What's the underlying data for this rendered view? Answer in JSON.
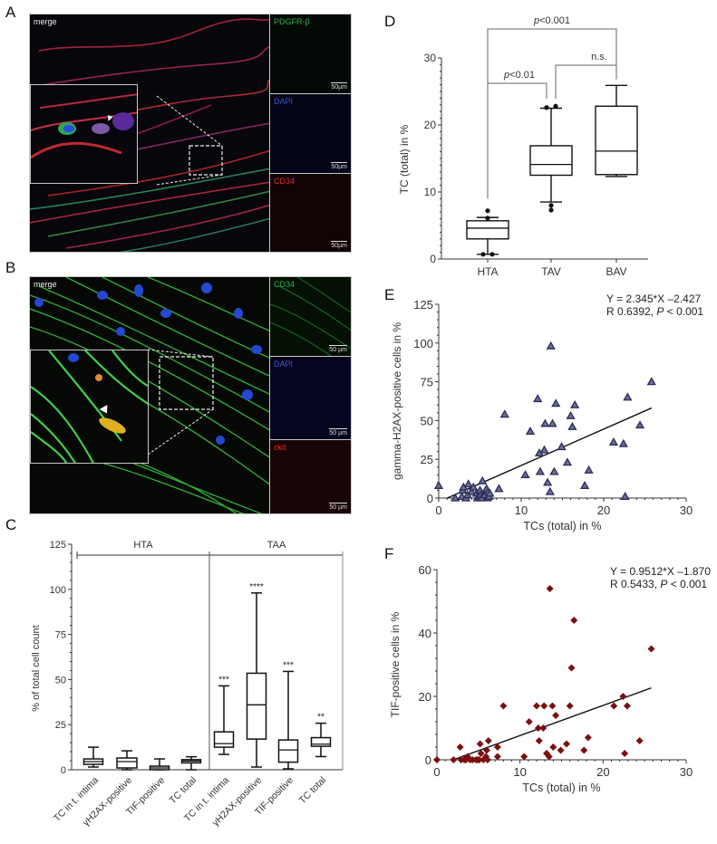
{
  "figure": {
    "panels": {
      "A": {
        "letter": "A",
        "main_label": "merge",
        "channels": [
          {
            "label": "PDGFR-β",
            "color": "#2fae52",
            "scale": "50µm"
          },
          {
            "label": "DAPI",
            "color": "#3a5bd0",
            "scale": "50µm"
          },
          {
            "label": "CD34",
            "color": "#e0302a",
            "scale": "50µm"
          }
        ]
      },
      "B": {
        "letter": "B",
        "main_label": "merge",
        "channels": [
          {
            "label": "CD34",
            "color": "#2fae52",
            "scale": "50 µm"
          },
          {
            "label": "DAPI",
            "color": "#3a5bd0",
            "scale": "50 µm"
          },
          {
            "label": "ckit",
            "color": "#e0302a",
            "scale": "50 µm"
          }
        ]
      },
      "C": {
        "letter": "C"
      },
      "D": {
        "letter": "D"
      },
      "E": {
        "letter": "E"
      },
      "F": {
        "letter": "F"
      }
    }
  },
  "chart_data": [
    {
      "panel": "C",
      "type": "box",
      "title": "",
      "ylabel": "% of total cell count",
      "xlabel": "",
      "ylim": [
        0,
        125
      ],
      "yticks": [
        0,
        25,
        50,
        75,
        100,
        125
      ],
      "groups": [
        {
          "name": "HTA",
          "categories": [
            "TC in t. intima",
            "γH2AX-positive",
            "TIF-positive",
            "TC total"
          ]
        },
        {
          "name": "TAA",
          "categories": [
            "TC in t. intima",
            "γH2AX-positive",
            "TIF-positive",
            "TC total"
          ]
        }
      ],
      "boxes": [
        {
          "group": "HTA",
          "category": "TC in t. intima",
          "min": 1.5,
          "q1": 3,
          "median": 4.5,
          "q3": 6,
          "max": 12.5,
          "annotation": ""
        },
        {
          "group": "HTA",
          "category": "γH2AX-positive",
          "min": 0,
          "q1": 1,
          "median": 4.5,
          "q3": 6.5,
          "max": 10.5,
          "annotation": ""
        },
        {
          "group": "HTA",
          "category": "TIF-positive",
          "min": 0,
          "q1": 0,
          "median": 1,
          "q3": 2,
          "max": 6,
          "annotation": ""
        },
        {
          "group": "HTA",
          "category": "TC total",
          "min": 0,
          "q1": 3.8,
          "median": 4.8,
          "q3": 5.6,
          "max": 7.2,
          "annotation": ""
        },
        {
          "group": "TAA",
          "category": "TC in t. intima",
          "min": 8.5,
          "q1": 12.5,
          "median": 14.5,
          "q3": 21,
          "max": 46.5,
          "annotation": "***"
        },
        {
          "group": "TAA",
          "category": "γH2AX-positive",
          "min": 1.5,
          "q1": 17,
          "median": 36,
          "q3": 53.5,
          "max": 98,
          "annotation": "****"
        },
        {
          "group": "TAA",
          "category": "TIF-positive",
          "min": 0.5,
          "q1": 4.2,
          "median": 11,
          "q3": 16.5,
          "max": 54.5,
          "annotation": "***"
        },
        {
          "group": "TAA",
          "category": "TC total",
          "min": 7.3,
          "q1": 13,
          "median": 14.2,
          "q3": 17.8,
          "max": 25.8,
          "annotation": "**"
        }
      ]
    },
    {
      "panel": "D",
      "type": "box",
      "title": "",
      "ylabel": "TC (total) in %",
      "xlabel": "",
      "ylim": [
        0,
        30
      ],
      "yticks": [
        0,
        10,
        20,
        30
      ],
      "categories": [
        "HTA",
        "TAV",
        "BAV"
      ],
      "boxes": [
        {
          "category": "HTA",
          "min": 0.7,
          "q1": 3,
          "median": 4.6,
          "q3": 5.7,
          "max": 6.2,
          "outliers": [
            7.2,
            6.1,
            0.7,
            0.7
          ]
        },
        {
          "category": "TAV",
          "min": 8.5,
          "q1": 12.5,
          "median": 14.1,
          "q3": 16.9,
          "max": 22.5,
          "outliers": [
            22.6,
            22.8,
            8.0,
            7.3
          ]
        },
        {
          "category": "BAV",
          "min": 12.3,
          "q1": 12.6,
          "median": 16.1,
          "q3": 22.8,
          "max": 25.9,
          "outliers": []
        }
      ],
      "comparisons": [
        {
          "from": "HTA",
          "to": "TAV",
          "label": "p<0.01"
        },
        {
          "from": "TAV",
          "to": "BAV",
          "label": "n.s."
        },
        {
          "from": "HTA",
          "to": "BAV",
          "label": "p<0.001"
        }
      ]
    },
    {
      "panel": "E",
      "type": "scatter",
      "title": "",
      "xlabel": "TCs (total) in %",
      "ylabel": "gamma-H2AX-positive cells in %",
      "xlim": [
        0,
        30
      ],
      "ylim": [
        0,
        125
      ],
      "xticks": [
        0,
        10,
        20,
        30
      ],
      "yticks": [
        0,
        25,
        50,
        75,
        100,
        125
      ],
      "marker": "triangle",
      "marker_color": "#2b2d55",
      "annotation": [
        "Y = 2.345*X –2.427",
        "R 0.6392, P < 0.001"
      ],
      "regression": {
        "slope": 2.345,
        "intercept": -2.427,
        "x_range": [
          1.0,
          25.8
        ]
      },
      "points": [
        [
          0,
          8
        ],
        [
          2,
          0
        ],
        [
          2.8,
          1
        ],
        [
          2.9,
          5
        ],
        [
          3.0,
          7
        ],
        [
          3.3,
          0
        ],
        [
          3.5,
          2
        ],
        [
          3.6,
          9
        ],
        [
          4.0,
          4
        ],
        [
          4.2,
          7
        ],
        [
          4.6,
          3
        ],
        [
          4.7,
          0
        ],
        [
          4.8,
          1
        ],
        [
          5.0,
          5
        ],
        [
          5.1,
          2
        ],
        [
          5.2,
          0
        ],
        [
          5.3,
          11
        ],
        [
          5.6,
          2
        ],
        [
          5.8,
          6
        ],
        [
          5.9,
          0
        ],
        [
          6.0,
          4
        ],
        [
          6.1,
          1
        ],
        [
          6.2,
          3
        ],
        [
          7.3,
          6
        ],
        [
          8.0,
          54
        ],
        [
          10.5,
          15
        ],
        [
          11.1,
          43
        ],
        [
          12.0,
          64
        ],
        [
          12.2,
          29
        ],
        [
          12.3,
          17
        ],
        [
          12.8,
          31
        ],
        [
          12.9,
          48
        ],
        [
          13.2,
          10
        ],
        [
          13.6,
          98
        ],
        [
          13.5,
          4
        ],
        [
          13.8,
          48
        ],
        [
          14.0,
          17
        ],
        [
          14.2,
          61
        ],
        [
          14.9,
          33
        ],
        [
          15.6,
          23
        ],
        [
          16.0,
          53
        ],
        [
          16.2,
          46
        ],
        [
          16.5,
          60
        ],
        [
          17.7,
          8
        ],
        [
          18.2,
          18
        ],
        [
          21.2,
          36
        ],
        [
          22.4,
          35
        ],
        [
          22.6,
          1
        ],
        [
          22.9,
          65
        ],
        [
          24.4,
          47
        ],
        [
          25.8,
          75
        ]
      ]
    },
    {
      "panel": "F",
      "type": "scatter",
      "title": "",
      "xlabel": "TCs (total) in %",
      "ylabel": "TIF-positive cells in %",
      "xlim": [
        0,
        30
      ],
      "ylim": [
        0,
        60
      ],
      "xticks": [
        0,
        10,
        20,
        30
      ],
      "yticks": [
        0,
        20,
        40,
        60
      ],
      "marker": "diamond",
      "marker_color": "#7a1010",
      "annotation": [
        "Y = 0.9512*X –1.870",
        "R 0.5433, P < 0.001"
      ],
      "regression": {
        "slope": 0.9512,
        "intercept": -1.87,
        "x_range": [
          2.0,
          25.8
        ]
      },
      "points": [
        [
          0,
          0
        ],
        [
          2,
          0
        ],
        [
          2.8,
          4
        ],
        [
          2.9,
          0
        ],
        [
          3.3,
          0
        ],
        [
          3.5,
          0
        ],
        [
          3.7,
          1
        ],
        [
          4.0,
          0
        ],
        [
          4.3,
          0
        ],
        [
          4.7,
          0
        ],
        [
          4.9,
          0
        ],
        [
          5.1,
          0
        ],
        [
          5.2,
          5
        ],
        [
          5.3,
          2
        ],
        [
          5.6,
          0
        ],
        [
          5.9,
          1
        ],
        [
          6.0,
          3
        ],
        [
          6.1,
          0
        ],
        [
          6.2,
          6
        ],
        [
          7.3,
          1
        ],
        [
          7.3,
          4
        ],
        [
          8.0,
          17
        ],
        [
          10.5,
          1
        ],
        [
          11.1,
          12
        ],
        [
          12.0,
          17
        ],
        [
          12.2,
          10
        ],
        [
          12.3,
          6
        ],
        [
          12.8,
          10
        ],
        [
          12.9,
          17
        ],
        [
          13.2,
          2
        ],
        [
          13.5,
          1
        ],
        [
          13.6,
          54
        ],
        [
          13.9,
          17
        ],
        [
          14.0,
          4
        ],
        [
          14.3,
          14
        ],
        [
          14.9,
          3
        ],
        [
          15.6,
          5
        ],
        [
          16.0,
          17
        ],
        [
          16.2,
          29
        ],
        [
          16.5,
          44
        ],
        [
          17.7,
          3
        ],
        [
          18.2,
          7
        ],
        [
          21.3,
          17
        ],
        [
          22.4,
          20
        ],
        [
          22.6,
          2
        ],
        [
          22.9,
          17
        ],
        [
          24.4,
          6
        ],
        [
          25.8,
          35
        ]
      ]
    }
  ]
}
